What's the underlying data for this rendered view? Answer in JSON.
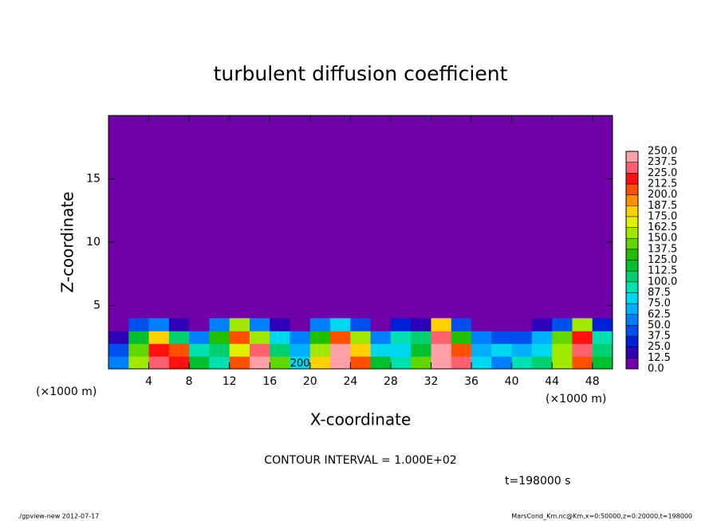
{
  "chart_data": {
    "type": "contour",
    "title": "turbulent diffusion coefficient",
    "x_label": "X-coordinate",
    "y_label": "Z-coordinate",
    "x_unit_left": "(×1000 m)",
    "x_unit_right": "(×1000 m)",
    "xlim": [
      0,
      50
    ],
    "ylim": [
      0,
      20
    ],
    "xticks": [
      4,
      8,
      12,
      16,
      20,
      24,
      28,
      32,
      36,
      40,
      44,
      48
    ],
    "yticks": [
      5,
      10,
      15
    ],
    "x": [
      1,
      3,
      5,
      7,
      9,
      11,
      13,
      15,
      17,
      19,
      21,
      23,
      25,
      27,
      29,
      31,
      33,
      35,
      37,
      39,
      41,
      43,
      45,
      47,
      49
    ],
    "z": [
      0.5,
      1.5,
      2.5,
      3.5
    ],
    "values": [
      [
        60,
        150,
        230,
        220,
        120,
        90,
        200,
        240,
        140,
        80,
        180,
        240,
        210,
        120,
        90,
        140,
        250,
        230,
        80,
        60,
        90,
        110,
        150,
        210,
        120
      ],
      [
        40,
        140,
        220,
        200,
        90,
        110,
        170,
        230,
        100,
        70,
        160,
        250,
        180,
        80,
        80,
        120,
        240,
        200,
        70,
        80,
        70,
        80,
        160,
        230,
        110
      ],
      [
        20,
        120,
        180,
        100,
        60,
        130,
        200,
        160,
        80,
        60,
        130,
        200,
        150,
        60,
        90,
        100,
        230,
        130,
        50,
        40,
        40,
        70,
        140,
        220,
        90
      ],
      [
        0,
        40,
        50,
        20,
        10,
        60,
        160,
        60,
        20,
        10,
        60,
        80,
        40,
        10,
        30,
        20,
        180,
        40,
        10,
        0,
        0,
        20,
        40,
        150,
        30
      ]
    ],
    "levels": [
      {
        "value": 0,
        "label": "0.0"
      },
      {
        "value": 12.5,
        "label": "12.5"
      },
      {
        "value": 25,
        "label": "25.0"
      },
      {
        "value": 37.5,
        "label": "37.5"
      },
      {
        "value": 50,
        "label": "50.0"
      },
      {
        "value": 62.5,
        "label": "62.5"
      },
      {
        "value": 75,
        "label": "75.0"
      },
      {
        "value": 87.5,
        "label": "87.5"
      },
      {
        "value": 100,
        "label": "100.0"
      },
      {
        "value": 112.5,
        "label": "112.5"
      },
      {
        "value": 125,
        "label": "125.0"
      },
      {
        "value": 137.5,
        "label": "137.5"
      },
      {
        "value": 150,
        "label": "150.0"
      },
      {
        "value": 162.5,
        "label": "162.5"
      },
      {
        "value": 175,
        "label": "175.0"
      },
      {
        "value": 187.5,
        "label": "187.5"
      },
      {
        "value": 200,
        "label": "200.0"
      },
      {
        "value": 212.5,
        "label": "212.5"
      },
      {
        "value": 225,
        "label": "225.0"
      },
      {
        "value": 237.5,
        "label": "237.5"
      },
      {
        "value": 250,
        "label": "250.0"
      }
    ],
    "colors": [
      "#7000a8",
      "#3000b8",
      "#0020d8",
      "#0050f0",
      "#0080ff",
      "#00b0ff",
      "#00d8f0",
      "#00e0b0",
      "#00d070",
      "#00c030",
      "#20c000",
      "#60d800",
      "#a0e800",
      "#e0f000",
      "#ffd000",
      "#ff9000",
      "#ff5000",
      "#ff1010",
      "#ff6070",
      "#ffa0a8"
    ],
    "contour_label": "200",
    "contour_label_x": 19,
    "contour_label_z": 0.4,
    "contour_interval": "CONTOUR INTERVAL = 1.000E+02",
    "time": "t=198000 s",
    "footer_left": "./gpview-new  2012-07-17",
    "footer_right": "MarsCond_Km.nc@Km,x=0:50000,z=0:20000,t=198000"
  }
}
